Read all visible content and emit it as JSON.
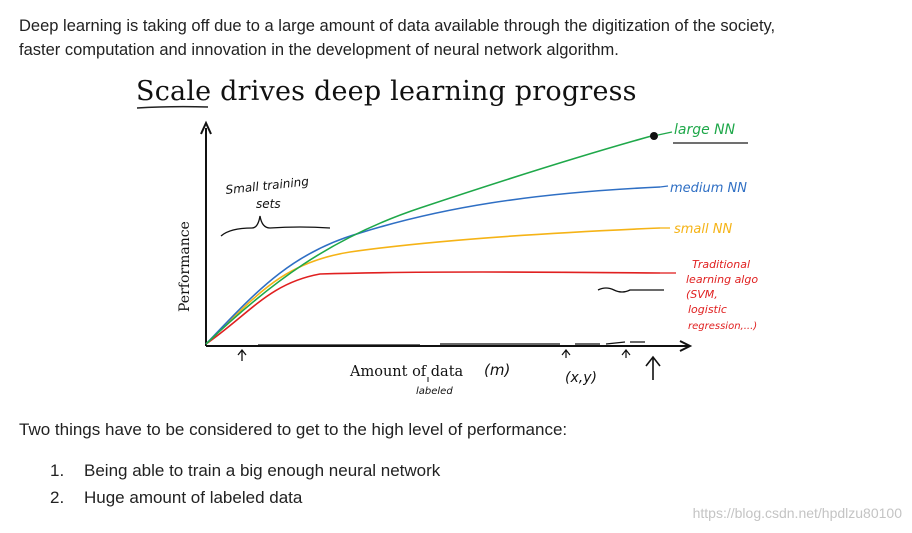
{
  "intro": {
    "line1": "Deep learning is taking off due to a large amount of data available through the digitization of the society,",
    "line2": "faster computation and innovation in the development of neural network algorithm."
  },
  "figure": {
    "title": "Scale drives deep learning progress",
    "ylabel": "Performance",
    "xlabel": "Amount of data",
    "xlabel_m": "(m)",
    "xlabel_note": "labeled",
    "xy_note": "(x,y)",
    "small_sets_line1": "Small training",
    "small_sets_line2": "sets",
    "chart_data": {
      "type": "line",
      "xlabel": "Amount of data",
      "ylabel": "Performance",
      "series": [
        {
          "name": "large NN",
          "color": "#1fa84a"
        },
        {
          "name": "medium NN",
          "color": "#2f6fc4"
        },
        {
          "name": "small NN",
          "color": "#f5b316"
        },
        {
          "name": "Traditional learning algo (SVM, logistic regression,...)",
          "color": "#e02020"
        }
      ],
      "series_labels": {
        "large": "large NN",
        "medium": "medium NN",
        "small": "small NN",
        "trad1": "Traditional",
        "trad2": "learning algo",
        "trad3": "(SVM,",
        "trad4": "logistic",
        "trad5": "regression,...)"
      }
    }
  },
  "para2": "Two things have to be considered to get to the high level of performance:",
  "steps": [
    {
      "num": "1.",
      "text": "Being able to train a big enough neural network"
    },
    {
      "num": "2.",
      "text": "Huge amount of labeled data"
    }
  ],
  "watermark": "https://blog.csdn.net/hpdlzu80100"
}
